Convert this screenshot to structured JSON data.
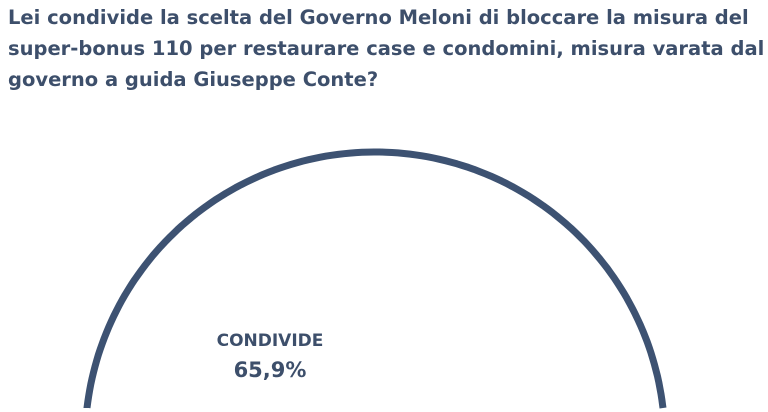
{
  "chart_data": {
    "type": "pie",
    "title": "Lei condivide la scelta del Governo Meloni di bloccare la misura del super-bonus 110 per restaurare case e condomini, misura varata dal governo a guida Giuseppe Conte?",
    "slices": [
      {
        "label": "CONDIVIDE",
        "value": 65.9,
        "value_label": "65,9%"
      }
    ],
    "colors": {
      "outline": "#3d5272",
      "text": "#3d4f6b",
      "fill": "#ffffff"
    }
  }
}
